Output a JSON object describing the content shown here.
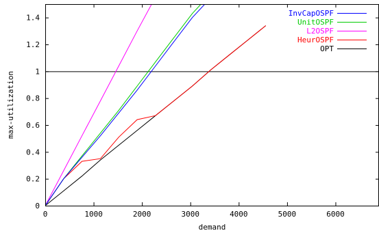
{
  "chart_data": {
    "type": "line",
    "title": "",
    "xlabel": "demand",
    "ylabel": "max-utilization",
    "xlim": [
      0,
      6900
    ],
    "ylim": [
      0,
      1.5
    ],
    "xticks": [
      0,
      1000,
      2000,
      3000,
      4000,
      5000,
      6000
    ],
    "yticks": [
      0,
      0.2,
      0.4,
      0.6,
      0.8,
      1,
      1.2,
      1.4
    ],
    "xtick_labels": [
      "0",
      "1000",
      "2000",
      "3000",
      "4000",
      "5000",
      "6000"
    ],
    "ytick_labels": [
      "0",
      "0.2",
      "0.4",
      "0.6",
      "0.8",
      "1",
      "1.2",
      "1.4"
    ],
    "grid": false,
    "legend_position": "top-right",
    "reference_line": {
      "y": 1,
      "color": "#000000"
    },
    "series": [
      {
        "name": "InvCapOSPF",
        "color": "#0000ff",
        "x": [
          0,
          380,
          760,
          1140,
          1520,
          1900,
          2280,
          2660,
          3040,
          3300
        ],
        "y": [
          0,
          0.2,
          0.36,
          0.52,
          0.69,
          0.86,
          1.04,
          1.22,
          1.4,
          1.5
        ]
      },
      {
        "name": "UnitOSPF",
        "color": "#00cc00",
        "x": [
          0,
          380,
          760,
          1140,
          1520,
          1900,
          2280,
          2660,
          3040,
          3220
        ],
        "y": [
          0,
          0.2,
          0.37,
          0.54,
          0.71,
          0.89,
          1.07,
          1.25,
          1.43,
          1.5
        ]
      },
      {
        "name": "L2OSPF",
        "color": "#ff00ff",
        "x": [
          0,
          380,
          760,
          1140,
          1520,
          1900,
          2200
        ],
        "y": [
          0,
          0.26,
          0.52,
          0.78,
          1.04,
          1.3,
          1.5
        ]
      },
      {
        "name": "HeurOSPF",
        "color": "#ff0000",
        "x": [
          0,
          380,
          760,
          1140,
          1520,
          1900,
          2280,
          2660,
          3040,
          3420,
          3800,
          4180,
          4560
        ],
        "y": [
          0,
          0.2,
          0.33,
          0.35,
          0.51,
          0.64,
          0.67,
          0.78,
          0.89,
          1.01,
          1.12,
          1.23,
          1.34
        ]
      },
      {
        "name": "OPT",
        "color": "#000000",
        "x": [
          0,
          380,
          760,
          1140,
          1520,
          1900,
          2280,
          2660,
          3040,
          3420,
          3800,
          4180,
          4560
        ],
        "y": [
          0,
          0.11,
          0.22,
          0.34,
          0.45,
          0.56,
          0.67,
          0.78,
          0.89,
          1.01,
          1.12,
          1.23,
          1.34
        ]
      }
    ]
  }
}
